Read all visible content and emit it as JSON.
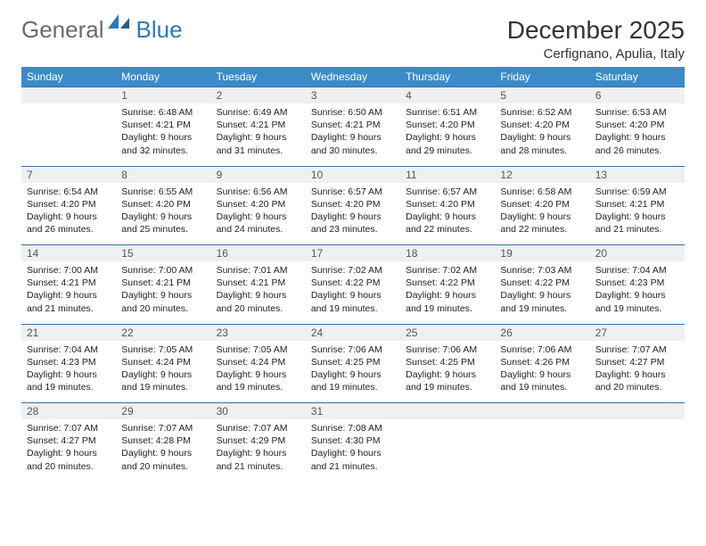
{
  "brand": {
    "part1": "General",
    "part2": "Blue"
  },
  "title": "December 2025",
  "location": "Cerfignano, Apulia, Italy",
  "colors": {
    "header_bg": "#3b8bc9",
    "header_fg": "#ffffff",
    "daynum_bg": "#eef0f2",
    "rule": "#3b6fa0",
    "logo_gray": "#6b6b6b",
    "logo_blue": "#2a7ab9"
  },
  "columns": [
    "Sunday",
    "Monday",
    "Tuesday",
    "Wednesday",
    "Thursday",
    "Friday",
    "Saturday"
  ],
  "weeks": [
    {
      "nums": [
        "",
        "1",
        "2",
        "3",
        "4",
        "5",
        "6"
      ],
      "cells": [
        "",
        "Sunrise: 6:48 AM\nSunset: 4:21 PM\nDaylight: 9 hours and 32 minutes.",
        "Sunrise: 6:49 AM\nSunset: 4:21 PM\nDaylight: 9 hours and 31 minutes.",
        "Sunrise: 6:50 AM\nSunset: 4:21 PM\nDaylight: 9 hours and 30 minutes.",
        "Sunrise: 6:51 AM\nSunset: 4:20 PM\nDaylight: 9 hours and 29 minutes.",
        "Sunrise: 6:52 AM\nSunset: 4:20 PM\nDaylight: 9 hours and 28 minutes.",
        "Sunrise: 6:53 AM\nSunset: 4:20 PM\nDaylight: 9 hours and 26 minutes."
      ]
    },
    {
      "nums": [
        "7",
        "8",
        "9",
        "10",
        "11",
        "12",
        "13"
      ],
      "cells": [
        "Sunrise: 6:54 AM\nSunset: 4:20 PM\nDaylight: 9 hours and 26 minutes.",
        "Sunrise: 6:55 AM\nSunset: 4:20 PM\nDaylight: 9 hours and 25 minutes.",
        "Sunrise: 6:56 AM\nSunset: 4:20 PM\nDaylight: 9 hours and 24 minutes.",
        "Sunrise: 6:57 AM\nSunset: 4:20 PM\nDaylight: 9 hours and 23 minutes.",
        "Sunrise: 6:57 AM\nSunset: 4:20 PM\nDaylight: 9 hours and 22 minutes.",
        "Sunrise: 6:58 AM\nSunset: 4:20 PM\nDaylight: 9 hours and 22 minutes.",
        "Sunrise: 6:59 AM\nSunset: 4:21 PM\nDaylight: 9 hours and 21 minutes."
      ]
    },
    {
      "nums": [
        "14",
        "15",
        "16",
        "17",
        "18",
        "19",
        "20"
      ],
      "cells": [
        "Sunrise: 7:00 AM\nSunset: 4:21 PM\nDaylight: 9 hours and 21 minutes.",
        "Sunrise: 7:00 AM\nSunset: 4:21 PM\nDaylight: 9 hours and 20 minutes.",
        "Sunrise: 7:01 AM\nSunset: 4:21 PM\nDaylight: 9 hours and 20 minutes.",
        "Sunrise: 7:02 AM\nSunset: 4:22 PM\nDaylight: 9 hours and 19 minutes.",
        "Sunrise: 7:02 AM\nSunset: 4:22 PM\nDaylight: 9 hours and 19 minutes.",
        "Sunrise: 7:03 AM\nSunset: 4:22 PM\nDaylight: 9 hours and 19 minutes.",
        "Sunrise: 7:04 AM\nSunset: 4:23 PM\nDaylight: 9 hours and 19 minutes."
      ]
    },
    {
      "nums": [
        "21",
        "22",
        "23",
        "24",
        "25",
        "26",
        "27"
      ],
      "cells": [
        "Sunrise: 7:04 AM\nSunset: 4:23 PM\nDaylight: 9 hours and 19 minutes.",
        "Sunrise: 7:05 AM\nSunset: 4:24 PM\nDaylight: 9 hours and 19 minutes.",
        "Sunrise: 7:05 AM\nSunset: 4:24 PM\nDaylight: 9 hours and 19 minutes.",
        "Sunrise: 7:06 AM\nSunset: 4:25 PM\nDaylight: 9 hours and 19 minutes.",
        "Sunrise: 7:06 AM\nSunset: 4:25 PM\nDaylight: 9 hours and 19 minutes.",
        "Sunrise: 7:06 AM\nSunset: 4:26 PM\nDaylight: 9 hours and 19 minutes.",
        "Sunrise: 7:07 AM\nSunset: 4:27 PM\nDaylight: 9 hours and 20 minutes."
      ]
    },
    {
      "nums": [
        "28",
        "29",
        "30",
        "31",
        "",
        "",
        ""
      ],
      "cells": [
        "Sunrise: 7:07 AM\nSunset: 4:27 PM\nDaylight: 9 hours and 20 minutes.",
        "Sunrise: 7:07 AM\nSunset: 4:28 PM\nDaylight: 9 hours and 20 minutes.",
        "Sunrise: 7:07 AM\nSunset: 4:29 PM\nDaylight: 9 hours and 21 minutes.",
        "Sunrise: 7:08 AM\nSunset: 4:30 PM\nDaylight: 9 hours and 21 minutes.",
        "",
        "",
        ""
      ]
    }
  ]
}
